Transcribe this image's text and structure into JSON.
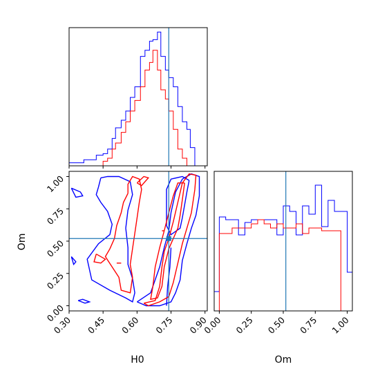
{
  "chart_data": {
    "type": "corner",
    "parameters": [
      "H0",
      "Om"
    ],
    "xlabels": {
      "H0": "H0",
      "Om": "Om"
    },
    "ylabel": "Om",
    "truth": {
      "H0": 0.74,
      "Om": 0.52
    },
    "colors": {
      "blue": "#0000ff",
      "red": "#ff0000",
      "truth": "#1f77b4"
    },
    "ranges": {
      "H0": [
        0.3,
        0.91
      ],
      "Om": [
        -0.04,
        1.04
      ]
    },
    "ticks": {
      "H0": [
        0.3,
        0.45,
        0.6,
        0.75,
        0.9
      ],
      "H0_labels": [
        "0.30",
        "0.45",
        "0.60",
        "0.75",
        "0.90"
      ],
      "Om": [
        0.0,
        0.25,
        0.5,
        0.75,
        1.0
      ],
      "Om_labels": [
        "0.00",
        "0.25",
        "0.50",
        "0.75",
        "1.00"
      ]
    },
    "hist_H0": {
      "bin_edges": [
        0.3,
        0.33,
        0.365,
        0.39,
        0.42,
        0.45,
        0.47,
        0.49,
        0.505,
        0.53,
        0.55,
        0.57,
        0.59,
        0.615,
        0.635,
        0.655,
        0.67,
        0.69,
        0.705,
        0.725,
        0.74,
        0.76,
        0.78,
        0.8,
        0.82,
        0.835,
        0.855,
        0.91
      ],
      "blue": [
        0.02,
        0.02,
        0.04,
        0.04,
        0.07,
        0.08,
        0.11,
        0.18,
        0.25,
        0.3,
        0.36,
        0.45,
        0.52,
        0.72,
        0.76,
        0.82,
        0.83,
        0.88,
        0.72,
        0.63,
        0.58,
        0.52,
        0.39,
        0.29,
        0.24,
        0.12,
        0.0
      ],
      "red": [
        0.0,
        0.0,
        0.0,
        0.0,
        0.0,
        0.03,
        0.05,
        0.11,
        0.15,
        0.22,
        0.29,
        0.36,
        0.43,
        0.52,
        0.63,
        0.68,
        0.76,
        0.63,
        0.5,
        0.44,
        0.36,
        0.24,
        0.11,
        0.05,
        0.0,
        0.0,
        0.0
      ]
    },
    "hist_Om": {
      "bin_edges": [
        -0.04,
        0.0,
        0.05,
        0.1,
        0.15,
        0.2,
        0.25,
        0.3,
        0.35,
        0.4,
        0.45,
        0.5,
        0.55,
        0.6,
        0.65,
        0.7,
        0.75,
        0.8,
        0.85,
        0.9,
        0.95,
        1.0,
        1.04
      ],
      "blue": [
        0.14,
        0.68,
        0.66,
        0.66,
        0.55,
        0.64,
        0.66,
        0.66,
        0.66,
        0.66,
        0.55,
        0.76,
        0.72,
        0.55,
        0.76,
        0.7,
        0.91,
        0.61,
        0.8,
        0.72,
        0.72,
        0.28
      ],
      "red": [
        0.0,
        0.56,
        0.56,
        0.6,
        0.6,
        0.6,
        0.63,
        0.66,
        0.63,
        0.6,
        0.63,
        0.6,
        0.6,
        0.63,
        0.56,
        0.6,
        0.6,
        0.58,
        0.58,
        0.58,
        0.0,
        0.0
      ]
    },
    "contours": [
      {
        "color": "blue",
        "points": [
          [
            0.44,
            0.99
          ],
          [
            0.43,
            0.92
          ],
          [
            0.42,
            0.86
          ],
          [
            0.44,
            0.8
          ],
          [
            0.47,
            0.73
          ],
          [
            0.49,
            0.63
          ],
          [
            0.48,
            0.55
          ],
          [
            0.43,
            0.48
          ],
          [
            0.38,
            0.36
          ],
          [
            0.4,
            0.2
          ],
          [
            0.48,
            0.12
          ],
          [
            0.55,
            0.06
          ],
          [
            0.58,
            0.03
          ],
          [
            0.59,
            0.1
          ],
          [
            0.58,
            0.21
          ],
          [
            0.56,
            0.32
          ],
          [
            0.56,
            0.45
          ],
          [
            0.55,
            0.6
          ],
          [
            0.56,
            0.74
          ],
          [
            0.58,
            0.86
          ],
          [
            0.57,
            0.96
          ],
          [
            0.52,
            1.0
          ],
          [
            0.47,
            1.0
          ],
          [
            0.44,
            0.99
          ]
        ]
      },
      {
        "color": "blue",
        "points": [
          [
            0.6,
            0.03
          ],
          [
            0.66,
            0.1
          ],
          [
            0.7,
            0.3
          ],
          [
            0.72,
            0.45
          ],
          [
            0.74,
            0.58
          ],
          [
            0.75,
            0.72
          ],
          [
            0.77,
            0.88
          ],
          [
            0.8,
            0.98
          ],
          [
            0.84,
            1.02
          ],
          [
            0.875,
            1.0
          ],
          [
            0.875,
            0.85
          ],
          [
            0.86,
            0.7
          ],
          [
            0.84,
            0.6
          ],
          [
            0.82,
            0.48
          ],
          [
            0.8,
            0.35
          ],
          [
            0.79,
            0.2
          ],
          [
            0.77,
            0.1
          ],
          [
            0.75,
            0.03
          ],
          [
            0.7,
            0.0
          ],
          [
            0.64,
            0.0
          ],
          [
            0.6,
            0.03
          ]
        ]
      },
      {
        "color": "blue",
        "points": [
          [
            0.83,
            0.97
          ],
          [
            0.82,
            0.88
          ],
          [
            0.81,
            0.78
          ],
          [
            0.8,
            0.68
          ],
          [
            0.79,
            0.6
          ],
          [
            0.75,
            0.55
          ],
          [
            0.73,
            0.62
          ],
          [
            0.73,
            0.76
          ],
          [
            0.73,
            0.9
          ],
          [
            0.75,
            0.98
          ],
          [
            0.8,
            1.0
          ],
          [
            0.83,
            0.97
          ]
        ]
      },
      {
        "color": "blue",
        "points": [
          [
            0.73,
            0.0
          ],
          [
            0.735,
            0.15
          ],
          [
            0.745,
            0.3
          ],
          [
            0.75,
            0.45
          ]
        ]
      },
      {
        "color": "blue",
        "points": [
          [
            0.31,
            0.91
          ],
          [
            0.35,
            0.88
          ],
          [
            0.36,
            0.85
          ],
          [
            0.33,
            0.84
          ],
          [
            0.31,
            0.91
          ]
        ]
      },
      {
        "color": "blue",
        "points": [
          [
            0.34,
            0.04
          ],
          [
            0.37,
            0.02
          ],
          [
            0.39,
            0.03
          ],
          [
            0.36,
            0.05
          ],
          [
            0.34,
            0.04
          ]
        ]
      },
      {
        "color": "blue",
        "points": [
          [
            0.31,
            0.38
          ],
          [
            0.33,
            0.34
          ],
          [
            0.32,
            0.32
          ],
          [
            0.31,
            0.38
          ]
        ]
      },
      {
        "color": "red",
        "points": [
          [
            0.56,
            0.87
          ],
          [
            0.54,
            0.8
          ],
          [
            0.53,
            0.72
          ],
          [
            0.51,
            0.62
          ],
          [
            0.5,
            0.52
          ],
          [
            0.48,
            0.44
          ],
          [
            0.46,
            0.38
          ],
          [
            0.49,
            0.3
          ],
          [
            0.52,
            0.22
          ],
          [
            0.53,
            0.12
          ],
          [
            0.57,
            0.1
          ],
          [
            0.58,
            0.22
          ],
          [
            0.57,
            0.32
          ],
          [
            0.58,
            0.44
          ],
          [
            0.59,
            0.56
          ],
          [
            0.6,
            0.68
          ],
          [
            0.61,
            0.8
          ],
          [
            0.62,
            0.9
          ],
          [
            0.61,
            0.98
          ],
          [
            0.58,
            1.0
          ],
          [
            0.56,
            0.94
          ],
          [
            0.56,
            0.87
          ]
        ]
      },
      {
        "color": "red",
        "points": [
          [
            0.63,
            0.02
          ],
          [
            0.68,
            0.04
          ],
          [
            0.7,
            0.15
          ],
          [
            0.71,
            0.3
          ],
          [
            0.72,
            0.42
          ],
          [
            0.74,
            0.52
          ],
          [
            0.76,
            0.65
          ],
          [
            0.78,
            0.8
          ],
          [
            0.8,
            0.95
          ],
          [
            0.83,
            1.02
          ],
          [
            0.86,
            1.01
          ],
          [
            0.855,
            0.9
          ],
          [
            0.84,
            0.72
          ],
          [
            0.82,
            0.6
          ],
          [
            0.8,
            0.48
          ],
          [
            0.78,
            0.33
          ],
          [
            0.76,
            0.18
          ],
          [
            0.74,
            0.07
          ],
          [
            0.7,
            0.03
          ],
          [
            0.65,
            0.0
          ],
          [
            0.63,
            0.02
          ]
        ]
      },
      {
        "color": "red",
        "points": [
          [
            0.81,
            0.95
          ],
          [
            0.8,
            0.82
          ],
          [
            0.79,
            0.7
          ],
          [
            0.78,
            0.6
          ],
          [
            0.76,
            0.52
          ],
          [
            0.74,
            0.44
          ],
          [
            0.72,
            0.3
          ],
          [
            0.71,
            0.15
          ],
          [
            0.69,
            0.06
          ],
          [
            0.66,
            0.05
          ],
          [
            0.67,
            0.15
          ],
          [
            0.68,
            0.3
          ],
          [
            0.7,
            0.45
          ],
          [
            0.72,
            0.58
          ],
          [
            0.74,
            0.72
          ],
          [
            0.76,
            0.85
          ],
          [
            0.78,
            0.95
          ],
          [
            0.81,
            0.95
          ]
        ]
      },
      {
        "color": "red",
        "points": [
          [
            0.42,
            0.4
          ],
          [
            0.46,
            0.36
          ],
          [
            0.44,
            0.33
          ],
          [
            0.41,
            0.34
          ],
          [
            0.42,
            0.4
          ]
        ]
      },
      {
        "color": "red",
        "points": [
          [
            0.6,
            0.95
          ],
          [
            0.63,
            1.0
          ],
          [
            0.65,
            0.99
          ],
          [
            0.62,
            0.93
          ],
          [
            0.6,
            0.95
          ]
        ]
      },
      {
        "color": "red",
        "points": [
          [
            0.51,
            0.33
          ],
          [
            0.53,
            0.33
          ]
        ]
      },
      {
        "color": "red",
        "points": [
          [
            0.71,
            0.58
          ],
          [
            0.72,
            0.58
          ]
        ]
      }
    ]
  }
}
